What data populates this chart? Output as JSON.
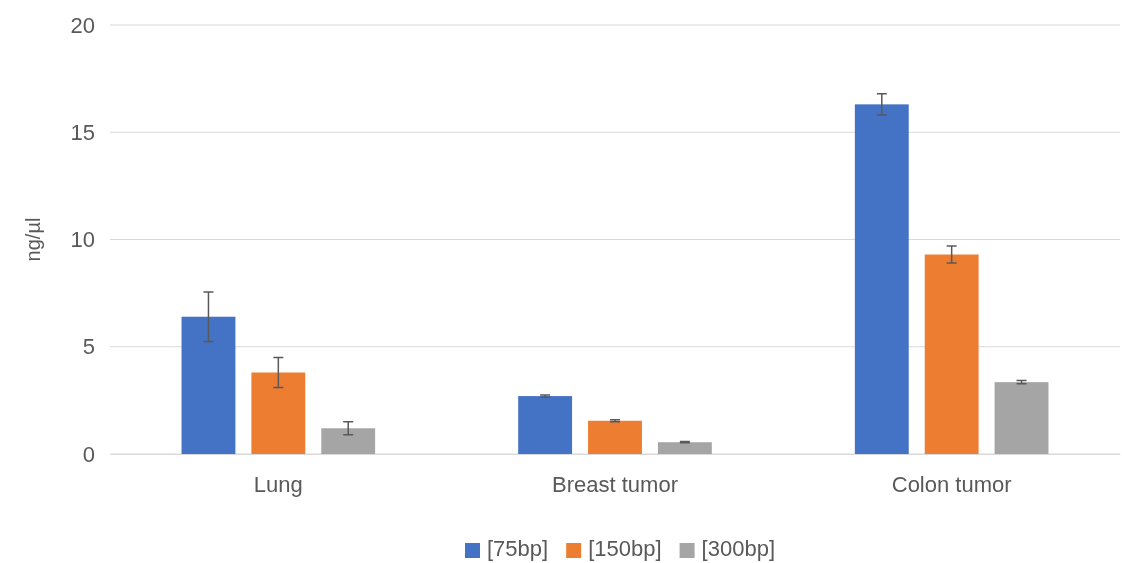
{
  "chart_data": {
    "type": "bar",
    "ylabel": "ng/µl",
    "categories": [
      "Lung",
      "Breast tumor",
      "Colon tumor"
    ],
    "series": [
      {
        "name": "[75bp]",
        "color": "#4472c4",
        "values": [
          6.4,
          2.7,
          16.3
        ],
        "errors": [
          1.15,
          0.05,
          0.5
        ]
      },
      {
        "name": "[150bp]",
        "color": "#ed7d31",
        "values": [
          3.8,
          1.55,
          9.3
        ],
        "errors": [
          0.7,
          0.05,
          0.4
        ]
      },
      {
        "name": "[300bp]",
        "color": "#a5a5a5",
        "values": [
          1.2,
          0.55,
          3.35
        ],
        "errors": [
          0.3,
          0.03,
          0.08
        ]
      }
    ],
    "ylim": [
      0,
      20
    ],
    "yticks": [
      0,
      5,
      10,
      15,
      20
    ],
    "grid": "y",
    "legend": "bottom"
  }
}
